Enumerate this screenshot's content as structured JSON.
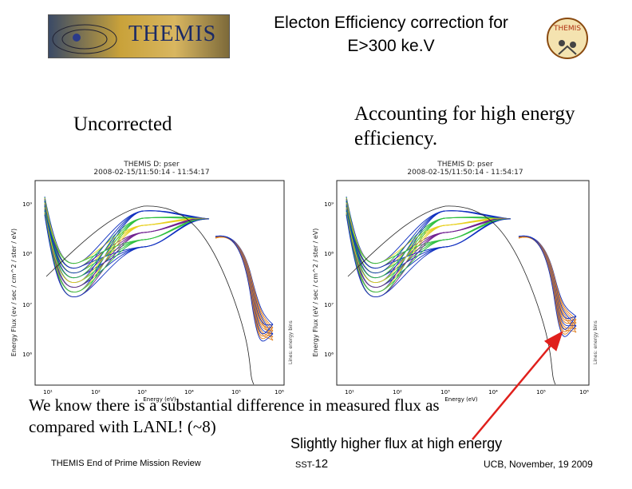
{
  "header": {
    "logo_text": "THEMIS",
    "title_line1": "Electon Efficiency correction for",
    "title_line2": "E>300 ke.V",
    "badge_text": "THEMIS"
  },
  "labels": {
    "left": "Uncorrected",
    "right": "Accounting for high energy efficiency."
  },
  "plots": [
    {
      "name": "uncorrected",
      "plot_title": "THEMIS D: pser",
      "time_range": "2008-02-15/11:50:14 - 11:54:17",
      "xlabel": "Energy (eV)",
      "ylabel": "Energy Flux (ev / sec / cm^2 / ster / eV)",
      "side_label": "Lines: energy bins",
      "x_ticks": [
        "10¹",
        "10²",
        "10³",
        "10⁴",
        "10⁵",
        "10⁶"
      ],
      "y_ticks": [
        "10⁹",
        "10⁸",
        "10⁷",
        "10⁶"
      ]
    },
    {
      "name": "corrected",
      "plot_title": "THEMIS D: pser",
      "time_range": "2008-02-15/11:50:14 - 11:54:17",
      "xlabel": "Energy (eV)",
      "ylabel": "Energy Flux (eV / sec / cm^2 / ster / eV)",
      "side_label": "Lines: energy bins",
      "x_ticks": [
        "10¹",
        "10²",
        "10³",
        "10⁴",
        "10⁵",
        "10⁶"
      ],
      "y_ticks": [
        "10⁹",
        "10⁸",
        "10⁷",
        "10⁶"
      ]
    }
  ],
  "body": {
    "text": "We know there is a substantial difference in measured flux as compared with LANL! (~8)",
    "note": "Slightly higher flux at high energy"
  },
  "footer": {
    "left": "THEMIS End of Prime Mission Review",
    "center_prefix": "SST-",
    "center_page": "12",
    "right": "UCB, November, 19 2009"
  },
  "colors": {
    "arrow": "#e0201c",
    "curve_blue": "#1030c0",
    "curve_green": "#30c040",
    "curve_yellow": "#e8d020",
    "curve_purple": "#702090",
    "curve_orange": "#e08020"
  }
}
